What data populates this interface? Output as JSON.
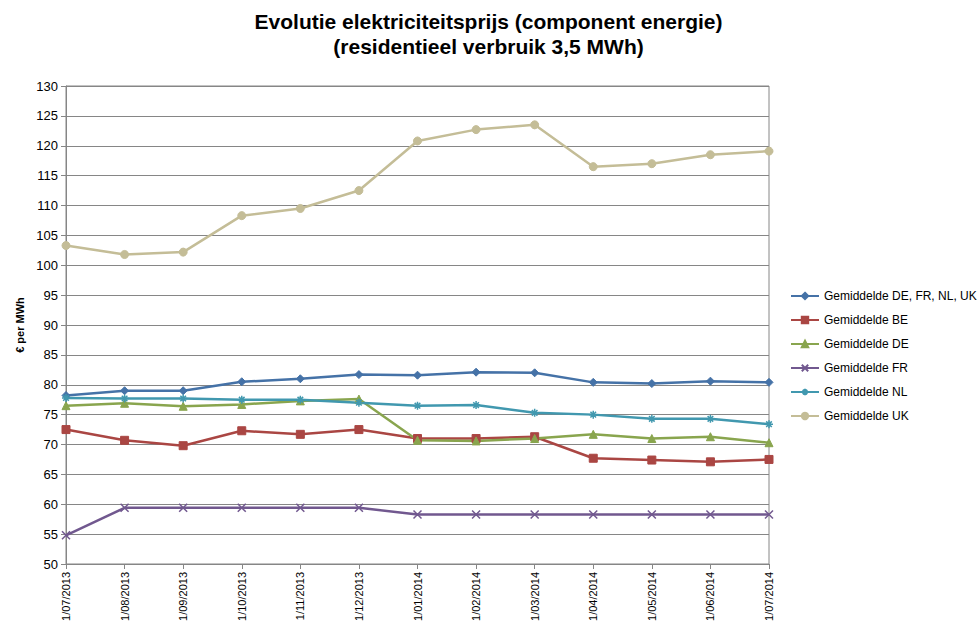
{
  "chart_data": {
    "type": "line",
    "title": "Evolutie elektriciteitsprijs (component energie)",
    "subtitle": "(residentieel verbruik 3,5 MWh)",
    "y_label": "€ per MWh",
    "categories": [
      "1/07/2013",
      "1/08/2013",
      "1/09/2013",
      "1/10/2013",
      "1/11/2013",
      "1/12/2013",
      "1/01/2014",
      "1/02/2014",
      "1/03/2014",
      "1/04/2014",
      "1/05/2014",
      "1/06/2014",
      "1/07/2014"
    ],
    "series": [
      {
        "name": "Gemiddelde DE, FR, NL, UK",
        "color": "#4572a7",
        "marker": "diamond",
        "values": [
          78.2,
          79.0,
          79.0,
          80.5,
          81.0,
          81.7,
          81.6,
          82.1,
          82.0,
          80.4,
          80.2,
          80.6,
          80.4
        ]
      },
      {
        "name": "Gemiddelde BE",
        "color": "#aa4643",
        "marker": "square",
        "values": [
          72.5,
          70.7,
          69.8,
          72.3,
          71.7,
          72.5,
          71.0,
          71.0,
          71.3,
          67.7,
          67.4,
          67.1,
          67.5
        ]
      },
      {
        "name": "Gemiddelde DE",
        "color": "#89a54e",
        "marker": "triangle",
        "values": [
          76.5,
          76.9,
          76.4,
          76.7,
          77.3,
          77.6,
          70.7,
          70.6,
          71.0,
          71.7,
          71.0,
          71.3,
          70.3
        ]
      },
      {
        "name": "Gemiddelde FR",
        "color": "#71588f",
        "marker": "x",
        "values": [
          54.8,
          59.4,
          59.4,
          59.4,
          59.4,
          59.4,
          58.3,
          58.3,
          58.3,
          58.3,
          58.3,
          58.3,
          58.3
        ]
      },
      {
        "name": "Gemiddelde NL",
        "color": "#4198af",
        "marker": "asterisk",
        "values": [
          77.8,
          77.7,
          77.7,
          77.5,
          77.5,
          77.0,
          76.5,
          76.6,
          75.3,
          75.0,
          74.3,
          74.3,
          73.4
        ]
      },
      {
        "name": "Gemiddelde UK",
        "color": "#c4bd97",
        "marker": "circle",
        "values": [
          103.3,
          101.8,
          102.2,
          108.3,
          109.5,
          112.5,
          120.8,
          122.7,
          123.5,
          116.5,
          117.0,
          118.5,
          119.1
        ]
      }
    ],
    "ylim": [
      50,
      130
    ],
    "yticks": [
      50,
      55,
      60,
      65,
      70,
      75,
      80,
      85,
      90,
      95,
      100,
      105,
      110,
      115,
      120,
      125,
      130
    ],
    "grid": true,
    "legend": "right"
  }
}
